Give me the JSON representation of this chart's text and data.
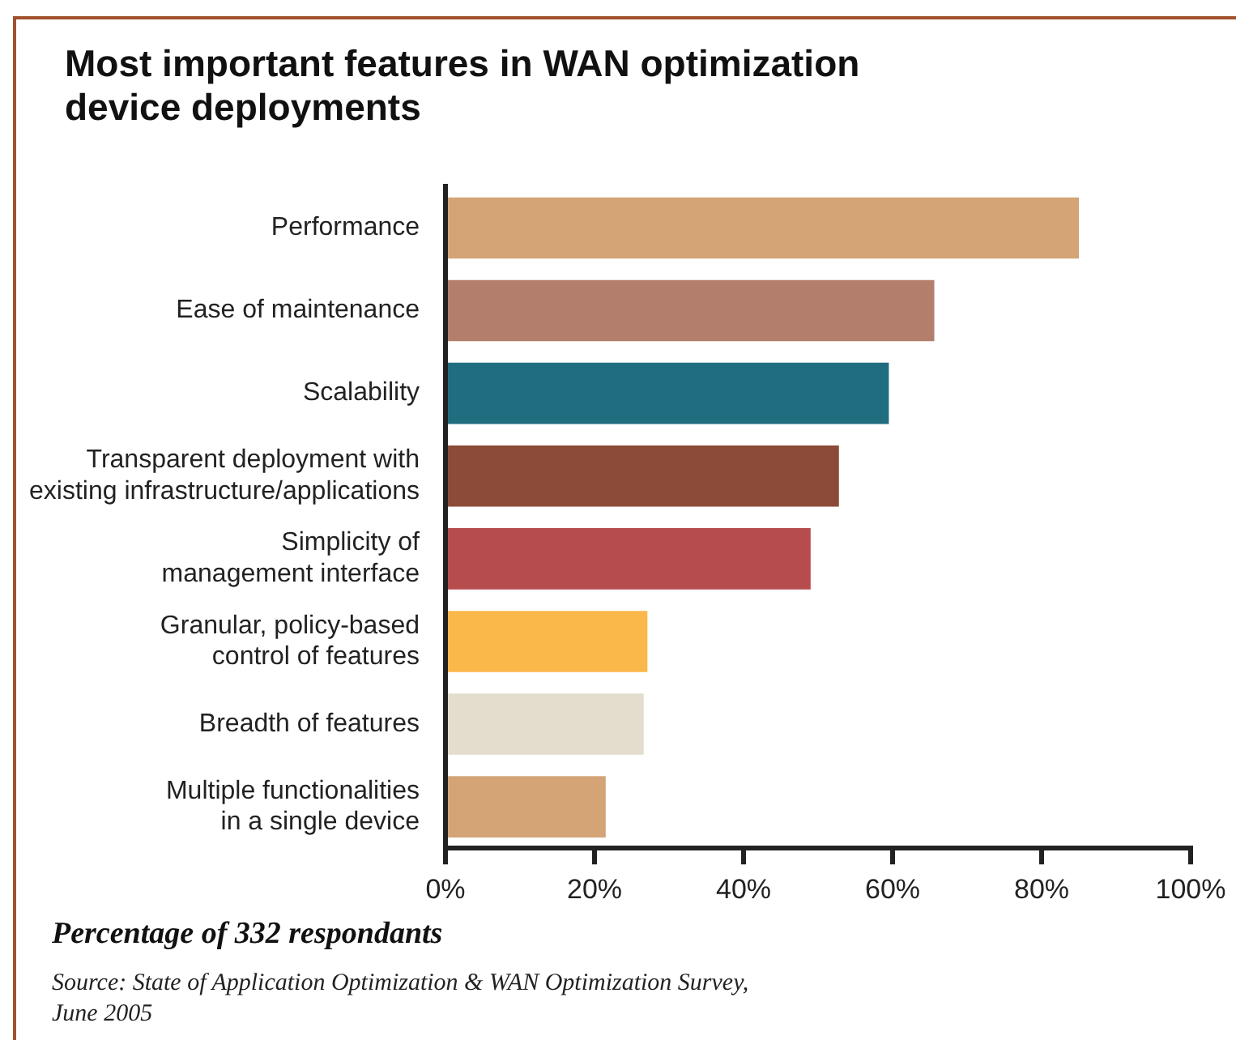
{
  "chart_data": {
    "type": "bar",
    "orientation": "horizontal",
    "title": "Most important features in WAN optimization\ndevice deployments",
    "categories": [
      "Performance",
      "Ease of maintenance",
      "Scalability",
      "Transparent deployment with\nexisting infrastructure/applications",
      "Simplicity of\nmanagement interface",
      "Granular, policy-based\ncontrol of features",
      "Breadth of features",
      "Multiple functionalities\nin a single device"
    ],
    "values": [
      85,
      65.6,
      59.5,
      52.8,
      49,
      27.1,
      26.6,
      21.5
    ],
    "colors": [
      "#d4a477",
      "#b37f6c",
      "#216d80",
      "#8c4b38",
      "#b64c4d",
      "#fbb84a",
      "#e3ddce",
      "#d4a477"
    ],
    "xlim": [
      0,
      100
    ],
    "xticks": [
      {
        "value": 0,
        "label": "0%"
      },
      {
        "value": 20,
        "label": "20%"
      },
      {
        "value": 40,
        "label": "40%"
      },
      {
        "value": 60,
        "label": "60%"
      },
      {
        "value": 80,
        "label": "80%"
      },
      {
        "value": 100,
        "label": "100%"
      }
    ],
    "grid": false,
    "legend": false,
    "xlabel": "Percentage of 332 respondants",
    "annotations": [
      "Source: State of Application Optimization & WAN Optimization Survey,\nJune 2005"
    ]
  }
}
